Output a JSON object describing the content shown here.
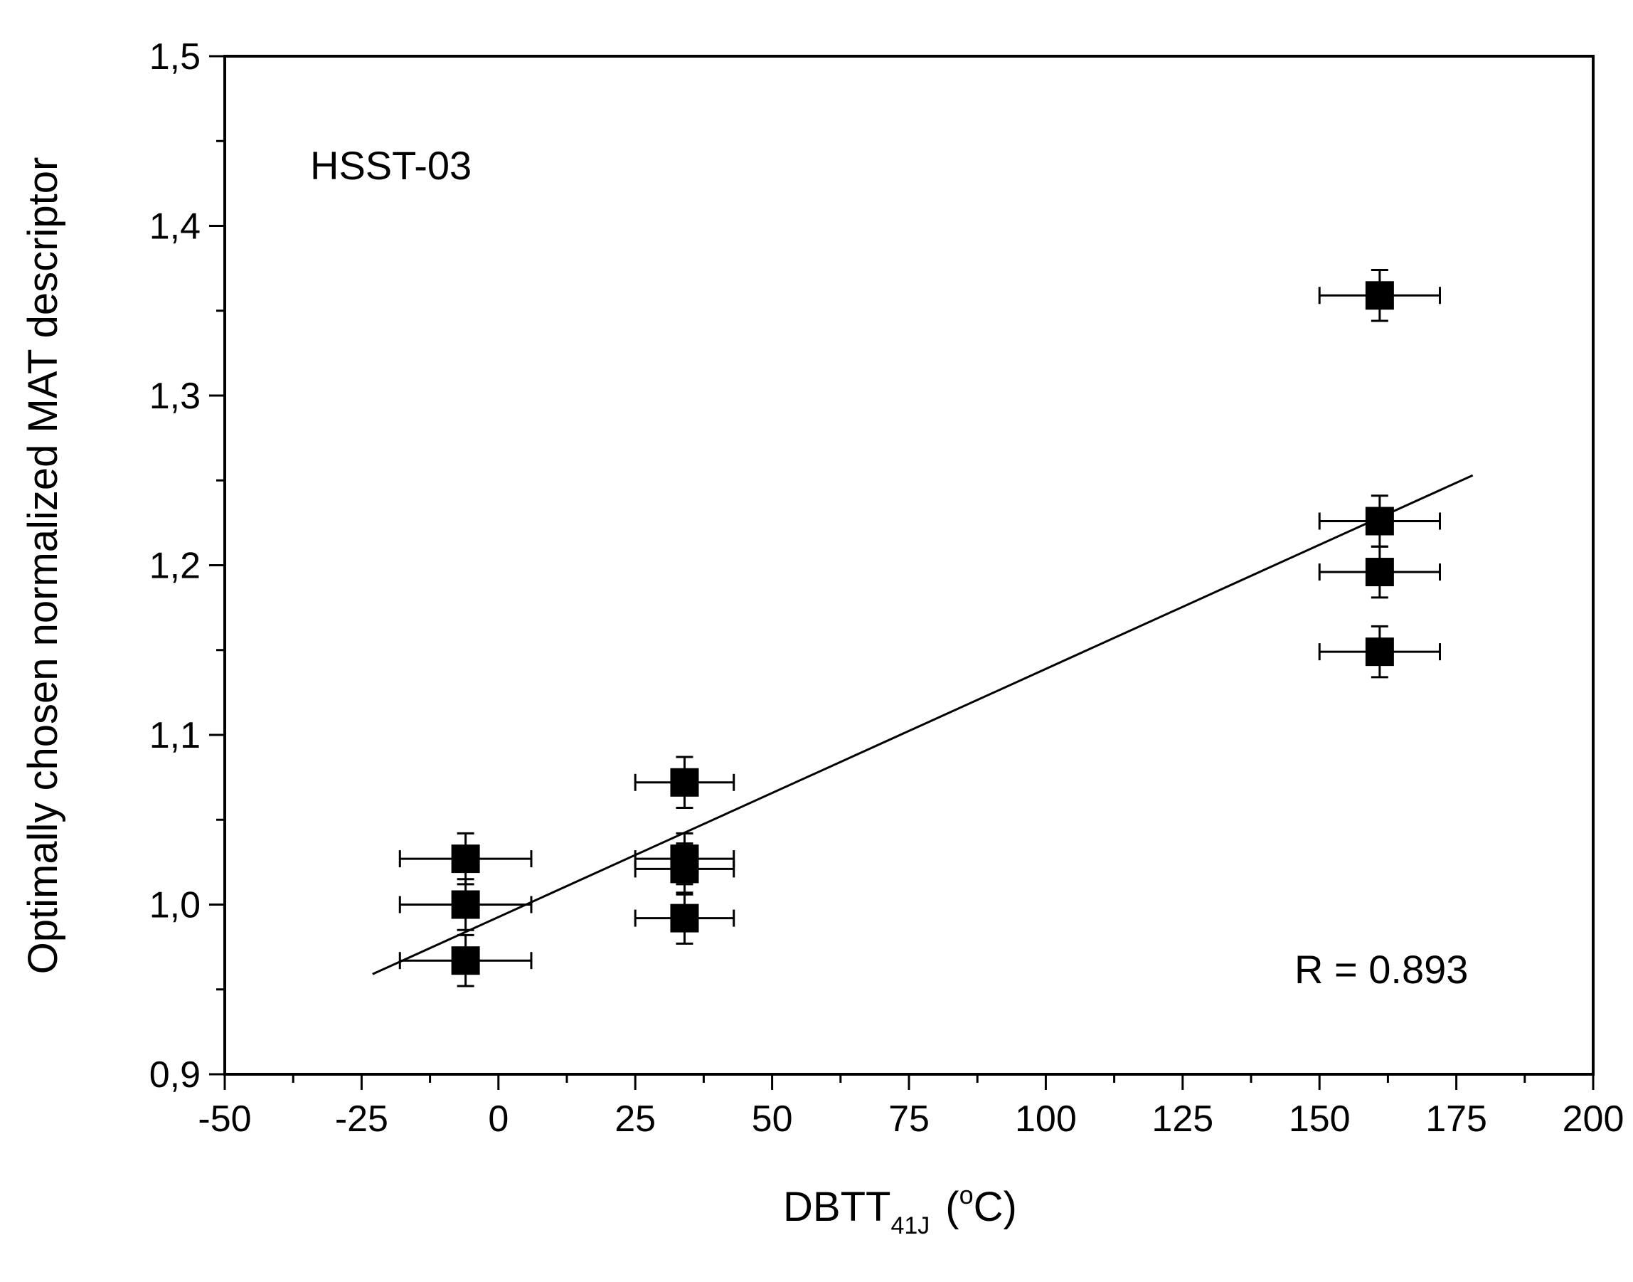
{
  "chart_data": {
    "type": "scatter",
    "title": "",
    "xlabel": {
      "main": "DBTT",
      "sub": "41J",
      "unit_open": "(",
      "unit_sup": "o",
      "unit_rest": "C)"
    },
    "ylabel": "Optimally chosen normalized MAT descriptor",
    "xlim": [
      -50,
      200
    ],
    "ylim": [
      0.9,
      1.5
    ],
    "x_ticks": [
      {
        "value": -50,
        "label": "-50"
      },
      {
        "value": -25,
        "label": "-25"
      },
      {
        "value": 0,
        "label": "0"
      },
      {
        "value": 25,
        "label": "25"
      },
      {
        "value": 50,
        "label": "50"
      },
      {
        "value": 75,
        "label": "75"
      },
      {
        "value": 100,
        "label": "100"
      },
      {
        "value": 125,
        "label": "125"
      },
      {
        "value": 150,
        "label": "150"
      },
      {
        "value": 175,
        "label": "175"
      },
      {
        "value": 200,
        "label": "200"
      }
    ],
    "y_ticks": [
      {
        "value": 0.9,
        "label": "0,9"
      },
      {
        "value": 1.0,
        "label": "1,0"
      },
      {
        "value": 1.1,
        "label": "1,1"
      },
      {
        "value": 1.2,
        "label": "1,2"
      },
      {
        "value": 1.3,
        "label": "1,3"
      },
      {
        "value": 1.4,
        "label": "1,4"
      },
      {
        "value": 1.5,
        "label": "1,5"
      }
    ],
    "x_minor_step": 12.5,
    "y_minor_step": 0.05,
    "series": [
      {
        "name": "HSST-03",
        "marker": "square",
        "points": [
          {
            "x": -6,
            "y": 1.027,
            "xerr": 12,
            "yerr": 0.015
          },
          {
            "x": -6,
            "y": 1.0,
            "xerr": 12,
            "yerr": 0.015
          },
          {
            "x": -6,
            "y": 0.967,
            "xerr": 12,
            "yerr": 0.015
          },
          {
            "x": 34,
            "y": 1.072,
            "xerr": 9,
            "yerr": 0.015
          },
          {
            "x": 34,
            "y": 1.027,
            "xerr": 9,
            "yerr": 0.015
          },
          {
            "x": 34,
            "y": 1.021,
            "xerr": 9,
            "yerr": 0.015
          },
          {
            "x": 34,
            "y": 0.992,
            "xerr": 9,
            "yerr": 0.015
          },
          {
            "x": 161,
            "y": 1.359,
            "xerr": 11,
            "yerr": 0.015
          },
          {
            "x": 161,
            "y": 1.226,
            "xerr": 11,
            "yerr": 0.015
          },
          {
            "x": 161,
            "y": 1.196,
            "xerr": 11,
            "yerr": 0.015
          },
          {
            "x": 161,
            "y": 1.149,
            "xerr": 11,
            "yerr": 0.015
          }
        ]
      }
    ],
    "fit_line": {
      "x": [
        -23,
        178
      ],
      "y": [
        0.959,
        1.253
      ]
    },
    "annotations": {
      "specimen": "HSST-03",
      "correlation": "R = 0.893"
    },
    "grid": false,
    "legend": "none"
  }
}
